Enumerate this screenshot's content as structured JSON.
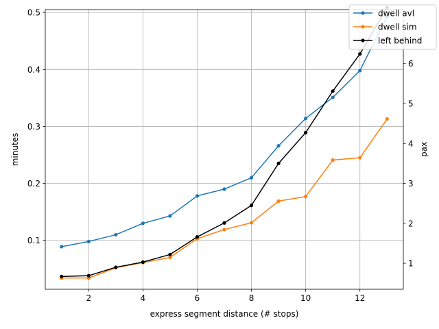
{
  "chart_data": {
    "type": "line",
    "xlabel": "express segment distance (# stops)",
    "ylabel_left": "minutes",
    "ylabel_right": "pax",
    "xlim": [
      0.4,
      13.6
    ],
    "ylim_left": [
      0.0143,
      0.505
    ],
    "ylim_right": [
      0.35,
      7.35
    ],
    "xticks": [
      2,
      4,
      6,
      8,
      10,
      12
    ],
    "yticks_left": [
      0.1,
      0.2,
      0.3,
      0.4,
      0.5
    ],
    "yticks_right": [
      1,
      2,
      3,
      4,
      5,
      6
    ],
    "grid": true,
    "legend_position": "top-right",
    "series": [
      {
        "name": "dwell avl",
        "axis": "left",
        "color": "#1f77b4",
        "x": [
          1,
          2,
          3,
          4,
          5,
          6,
          7,
          8,
          9,
          10,
          11,
          12,
          13
        ],
        "values": [
          0.089,
          0.098,
          0.11,
          0.13,
          0.143,
          0.178,
          0.19,
          0.21,
          0.266,
          0.314,
          0.351,
          0.398,
          0.493
        ]
      },
      {
        "name": "dwell sim",
        "axis": "left",
        "color": "#ff7f0e",
        "x": [
          1,
          2,
          3,
          4,
          5,
          6,
          7,
          8,
          9,
          10,
          11,
          12,
          13
        ],
        "values": [
          0.034,
          0.034,
          0.052,
          0.061,
          0.07,
          0.103,
          0.119,
          0.131,
          0.169,
          0.177,
          0.241,
          0.245,
          0.313
        ]
      },
      {
        "name": "left behind",
        "axis": "right",
        "color": "#000000",
        "x": [
          1,
          2,
          3,
          4,
          5,
          6,
          7,
          8,
          9,
          10,
          11,
          12,
          13
        ],
        "values": [
          0.67,
          0.69,
          0.9,
          1.03,
          1.22,
          1.66,
          2.01,
          2.45,
          3.5,
          4.27,
          5.31,
          6.24,
          7.4
        ]
      }
    ]
  }
}
